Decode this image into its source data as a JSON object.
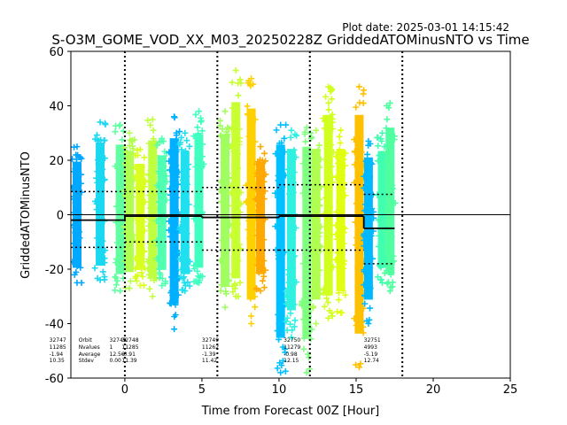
{
  "plot_date": "Plot date: 2025-03-01 14:15:42",
  "chart_data": {
    "type": "scatter",
    "title": "S-O3M_GOME_VOD_XX_M03_20250228Z GriddedATOMinusNTO vs Time",
    "xlabel": "Time from Forecast 00Z [Hour]",
    "ylabel": "GriddedATOMinusNTO",
    "xlim": [
      -3.5,
      25
    ],
    "ylim": [
      -60,
      60
    ],
    "xticks": [
      0,
      5,
      10,
      15,
      20,
      25
    ],
    "yticks": [
      -60,
      -40,
      -20,
      0,
      20,
      40,
      60
    ],
    "grid": false,
    "zero_line": 0,
    "vertical_dotted_lines": [
      0,
      6,
      12,
      18
    ],
    "colormap": "jet",
    "point_columns": [
      {
        "x": -3.1,
        "low": -25,
        "high": 25,
        "color": "#00a8ff"
      },
      {
        "x": -1.6,
        "low": -24,
        "high": 34,
        "color": "#1ad8f0"
      },
      {
        "x": -0.3,
        "low": -28,
        "high": 33,
        "color": "#60ffa0"
      },
      {
        "x": 0.3,
        "low": -27,
        "high": 30,
        "color": "#b0ff50"
      },
      {
        "x": 1.0,
        "low": -26,
        "high": 24,
        "color": "#d8ff20"
      },
      {
        "x": 1.8,
        "low": -30,
        "high": 35,
        "color": "#c0ff40"
      },
      {
        "x": 2.4,
        "low": -26,
        "high": 28,
        "color": "#50ffb0"
      },
      {
        "x": 3.2,
        "low": -42,
        "high": 36,
        "color": "#00b0ff"
      },
      {
        "x": 3.9,
        "low": -28,
        "high": 30,
        "color": "#20e0f0"
      },
      {
        "x": 4.8,
        "low": -25,
        "high": 38,
        "color": "#40ffc0"
      },
      {
        "x": 6.5,
        "low": -34,
        "high": 38,
        "color": "#a0ff60"
      },
      {
        "x": 7.2,
        "low": -30,
        "high": 53,
        "color": "#c8ff30"
      },
      {
        "x": 8.2,
        "low": -40,
        "high": 50,
        "color": "#ffd000"
      },
      {
        "x": 8.8,
        "low": -28,
        "high": 25,
        "color": "#ffa800"
      },
      {
        "x": 10.1,
        "low": -58,
        "high": 33,
        "color": "#00c0ff"
      },
      {
        "x": 10.8,
        "low": -45,
        "high": 31,
        "color": "#30f0e0"
      },
      {
        "x": 11.8,
        "low": -58,
        "high": 32,
        "color": "#80ff80"
      },
      {
        "x": 12.4,
        "low": -40,
        "high": 31,
        "color": "#b0ff50"
      },
      {
        "x": 13.2,
        "low": -38,
        "high": 47,
        "color": "#d0ff20"
      },
      {
        "x": 14.0,
        "low": -36,
        "high": 31,
        "color": "#e0ff10"
      },
      {
        "x": 15.2,
        "low": -56,
        "high": 47,
        "color": "#ffc000"
      },
      {
        "x": 15.8,
        "low": -40,
        "high": 27,
        "color": "#00b8ff"
      },
      {
        "x": 16.7,
        "low": -25,
        "high": 30,
        "color": "#40ffb0"
      },
      {
        "x": 17.2,
        "low": -28,
        "high": 41,
        "color": "#50ffa0"
      }
    ],
    "solid_mean_segments": [
      {
        "x0": -3.5,
        "x1": 0,
        "y": -2
      },
      {
        "x0": 0,
        "x1": 5,
        "y": -0.5
      },
      {
        "x0": 5,
        "x1": 10,
        "y": -1
      },
      {
        "x0": 10,
        "x1": 15.5,
        "y": -0.5
      },
      {
        "x0": 15.5,
        "x1": 17.5,
        "y": -5
      }
    ],
    "dotted_bound_segments": [
      {
        "x0": -3.5,
        "x1": 0,
        "y": 8.5
      },
      {
        "x0": -3.5,
        "x1": 0,
        "y": -12
      },
      {
        "x0": 0,
        "x1": 5,
        "y": 8.5
      },
      {
        "x0": 0,
        "x1": 5,
        "y": -10
      },
      {
        "x0": 5,
        "x1": 10,
        "y": 10
      },
      {
        "x0": 5,
        "x1": 10,
        "y": -13
      },
      {
        "x0": 10,
        "x1": 15.5,
        "y": 11
      },
      {
        "x0": 10,
        "x1": 15.5,
        "y": -13
      },
      {
        "x0": 15.5,
        "x1": 17.5,
        "y": 7.5
      },
      {
        "x0": 15.5,
        "x1": 17.5,
        "y": -18
      }
    ],
    "row_labels": [
      "Orbit",
      "Nvalues",
      "Average",
      "Stdev"
    ],
    "row_labels_x": -3,
    "stat_blocks": [
      {
        "x": -4.9,
        "values": [
          "32747",
          "11285",
          "-1.94",
          "10.35"
        ]
      },
      {
        "x": -1.0,
        "values": [
          "32749",
          "1",
          "12.56",
          "0.00"
        ]
      },
      {
        "x": -0.2,
        "values": [
          "32748",
          "11285",
          "-0.91",
          "11.39"
        ]
      },
      {
        "x": 5.0,
        "values": [
          "32749",
          "11262",
          "-1.39",
          "11.42"
        ]
      },
      {
        "x": 10.3,
        "values": [
          "32750",
          "11279",
          "-0.98",
          "12.15"
        ]
      },
      {
        "x": 15.5,
        "values": [
          "32751",
          "4993",
          "-5.19",
          "12.74"
        ]
      }
    ]
  }
}
